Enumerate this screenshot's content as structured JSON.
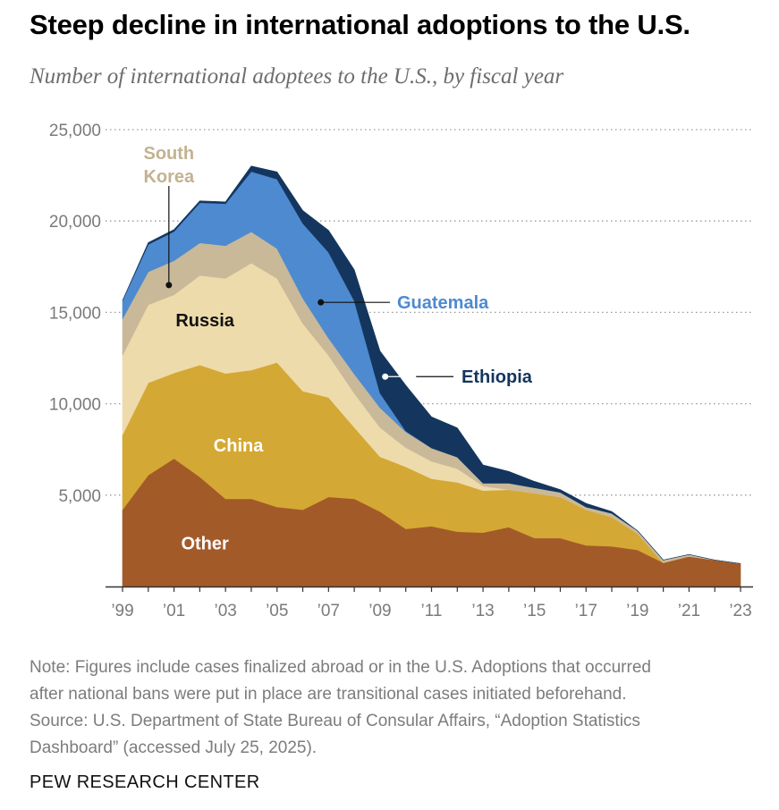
{
  "header": {
    "title": "Steep decline in international adoptions to the U.S.",
    "subtitle": "Number of international adoptees to the U.S., by fiscal year"
  },
  "footer": {
    "note_line1": "Note: Figures include cases finalized abroad or in the U.S. Adoptions that occurred",
    "note_line2": "after national bans were put in place are transitional cases initiated beforehand.",
    "source_line1": "Source: U.S. Department of State Bureau of Consular Affairs, “Adoption Statistics",
    "source_line2": "Dashboard” (accessed July 25, 2025).",
    "brand": "PEW RESEARCH CENTER"
  },
  "chart_data": {
    "type": "area",
    "stacked": true,
    "title": "Steep decline in international adoptions to the U.S.",
    "subtitle": "Number of international adoptees to the U.S., by fiscal year",
    "xlabel": "",
    "ylabel": "",
    "ylim": [
      0,
      25000
    ],
    "grid": true,
    "x": [
      1999,
      2000,
      2001,
      2002,
      2003,
      2004,
      2005,
      2006,
      2007,
      2008,
      2009,
      2010,
      2011,
      2012,
      2013,
      2014,
      2015,
      2016,
      2017,
      2018,
      2019,
      2020,
      2021,
      2022,
      2023
    ],
    "x_ticks": [
      "’99",
      "’01",
      "’03",
      "’05",
      "’07",
      "’09",
      "’11",
      "’13",
      "’15",
      "’17",
      "’19",
      "’21",
      "’23"
    ],
    "x_tick_years": [
      1999,
      2001,
      2003,
      2005,
      2007,
      2009,
      2011,
      2013,
      2015,
      2017,
      2019,
      2021,
      2023
    ],
    "y_ticks": [
      5000,
      10000,
      15000,
      20000,
      25000
    ],
    "y_tick_labels": [
      "5,000",
      "10,000",
      "15,000",
      "20,000",
      "25,000"
    ],
    "series": [
      {
        "name": "Other",
        "color": "#a35a29",
        "label_color": "#ffffff",
        "values": [
          4200,
          6100,
          7000,
          6000,
          4800,
          4800,
          4350,
          4200,
          4900,
          4800,
          4100,
          3150,
          3300,
          3000,
          2950,
          3250,
          2650,
          2650,
          2250,
          2200,
          2000,
          1300,
          1650,
          1450,
          1250
        ]
      },
      {
        "name": "China",
        "color": "#d4a834",
        "label_color": "#ffffff",
        "values": [
          4100,
          5050,
          4680,
          6120,
          6860,
          7040,
          7910,
          6490,
          5450,
          3910,
          3000,
          3400,
          2600,
          2700,
          2300,
          2050,
          2450,
          2250,
          1950,
          1600,
          900,
          0,
          0,
          0,
          0
        ]
      },
      {
        "name": "Russia",
        "color": "#eddbab",
        "label_color": "#111111",
        "values": [
          4350,
          4270,
          4280,
          4900,
          5200,
          5860,
          4600,
          3700,
          2300,
          1860,
          1600,
          1050,
          950,
          750,
          250,
          0,
          0,
          0,
          0,
          0,
          0,
          0,
          0,
          0,
          0
        ]
      },
      {
        "name": "South Korea",
        "color": "#c9b999",
        "label_color": "#c2b291",
        "values": [
          2000,
          1800,
          1870,
          1780,
          1790,
          1710,
          1630,
          1380,
          940,
          1060,
          1080,
          860,
          730,
          630,
          150,
          350,
          300,
          250,
          150,
          200,
          150,
          150,
          100,
          0,
          0
        ]
      },
      {
        "name": "Guatemala",
        "color": "#4e8ad0",
        "label_color": "#4e8ad0",
        "values": [
          1000,
          1500,
          1600,
          2200,
          2300,
          3300,
          3800,
          4100,
          4700,
          4000,
          800,
          50,
          0,
          0,
          0,
          0,
          0,
          0,
          0,
          0,
          0,
          0,
          0,
          0,
          0
        ]
      },
      {
        "name": "Ethiopia",
        "color": "#14365e",
        "label_color": "#14365e",
        "values": [
          0,
          100,
          100,
          100,
          100,
          300,
          400,
          700,
          1200,
          1700,
          2300,
          2500,
          1700,
          1600,
          1000,
          650,
          350,
          150,
          200,
          100,
          0,
          0,
          0,
          0,
          0
        ]
      }
    ],
    "annotations": [
      {
        "series": "Other",
        "text": "Other"
      },
      {
        "series": "China",
        "text": "China"
      },
      {
        "series": "Russia",
        "text": "Russia"
      },
      {
        "series": "South Korea",
        "text": "South Korea",
        "lines": [
          "South",
          "Korea"
        ]
      },
      {
        "series": "Guatemala",
        "text": "Guatemala"
      },
      {
        "series": "Ethiopia",
        "text": "Ethiopia"
      }
    ]
  }
}
